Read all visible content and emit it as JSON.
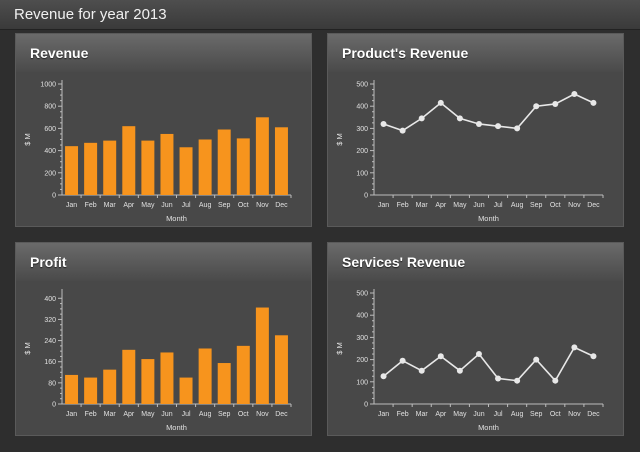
{
  "page_title": "Revenue for year 2013",
  "colors": {
    "bar": "#f7941d",
    "line": "#e8e8e8",
    "panel": "#484848",
    "background": "#2e2e2e"
  },
  "chart_data": [
    {
      "id": "revenue",
      "type": "bar",
      "title": "Revenue",
      "xlabel": "Month",
      "ylabel": "$ M",
      "ylim": [
        0,
        1000
      ],
      "yticks": [
        0,
        200,
        400,
        600,
        800,
        1000
      ],
      "yticks_labels": [
        "0",
        "200",
        "400",
        "600",
        "800",
        "1000"
      ],
      "categories": [
        "Jan",
        "Feb",
        "Mar",
        "Apr",
        "May",
        "Jun",
        "Jul",
        "Aug",
        "Sep",
        "Oct",
        "Nov",
        "Dec"
      ],
      "values": [
        440,
        470,
        490,
        620,
        490,
        550,
        430,
        500,
        590,
        510,
        700,
        610
      ]
    },
    {
      "id": "products",
      "type": "line",
      "title": "Product's Revenue",
      "xlabel": "Month",
      "ylabel": "$ M",
      "ylim": [
        0,
        500
      ],
      "yticks": [
        0,
        100,
        200,
        300,
        400,
        500
      ],
      "yticks_labels": [
        "0",
        "100",
        "200",
        "300",
        "400",
        "500"
      ],
      "categories": [
        "Jan",
        "Feb",
        "Mar",
        "Apr",
        "May",
        "Jun",
        "Jul",
        "Aug",
        "Sep",
        "Oct",
        "Nov",
        "Dec"
      ],
      "values": [
        320,
        290,
        345,
        415,
        345,
        320,
        310,
        300,
        400,
        410,
        455,
        415
      ]
    },
    {
      "id": "profit",
      "type": "bar",
      "title": "Profit",
      "xlabel": "Month",
      "ylabel": "$ M",
      "ylim": [
        0,
        420
      ],
      "yticks": [
        0,
        80,
        160,
        240,
        320,
        400
      ],
      "yticks_labels": [
        "0",
        "80",
        "160",
        "240",
        "320",
        "400"
      ],
      "categories": [
        "Jan",
        "Feb",
        "Mar",
        "Apr",
        "May",
        "Jun",
        "Jul",
        "Aug",
        "Sep",
        "Oct",
        "Nov",
        "Dec"
      ],
      "values": [
        110,
        100,
        130,
        205,
        170,
        195,
        100,
        210,
        155,
        220,
        365,
        260
      ]
    },
    {
      "id": "services",
      "type": "line",
      "title": "Services' Revenue",
      "xlabel": "Month",
      "ylabel": "$ M",
      "ylim": [
        0,
        500
      ],
      "yticks": [
        0,
        100,
        200,
        300,
        400,
        500
      ],
      "yticks_labels": [
        "0",
        "100",
        "200",
        "300",
        "400",
        "500"
      ],
      "categories": [
        "Jan",
        "Feb",
        "Mar",
        "Apr",
        "May",
        "Jun",
        "Jul",
        "Aug",
        "Sep",
        "Oct",
        "Nov",
        "Dec"
      ],
      "values": [
        125,
        195,
        150,
        215,
        150,
        225,
        115,
        105,
        200,
        105,
        255,
        215
      ]
    }
  ]
}
